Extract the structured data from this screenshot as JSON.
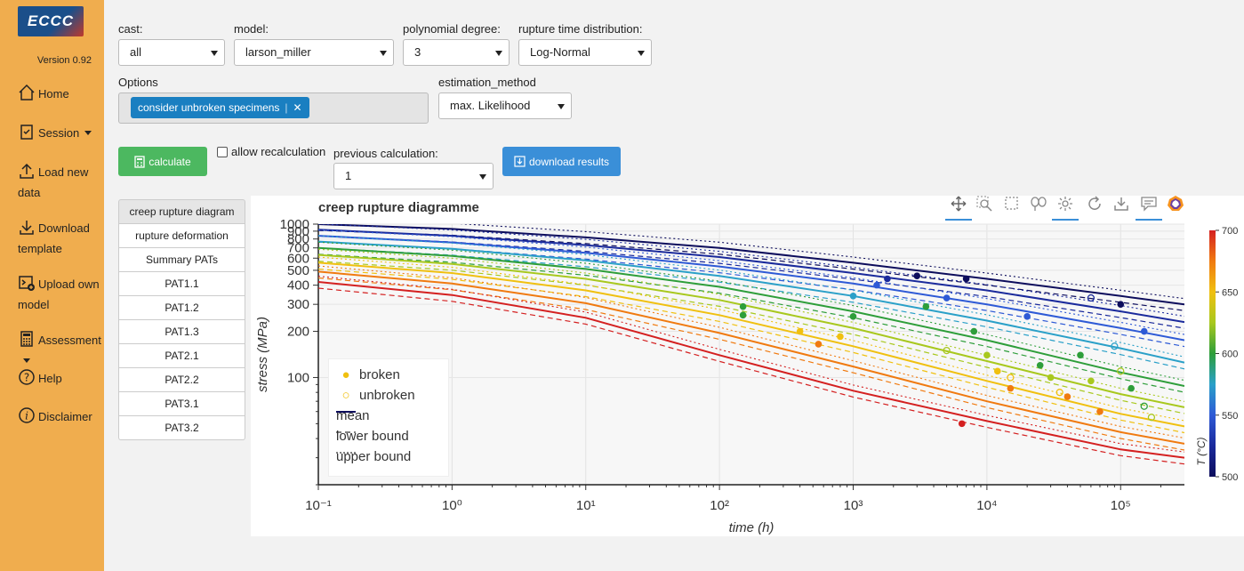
{
  "app": {
    "logo": "ECCC",
    "version": "Version 0.92"
  },
  "sidebar": {
    "items": [
      {
        "label": "Home",
        "icon": "home-icon"
      },
      {
        "label": "Session",
        "icon": "clipboard-icon",
        "dropdown": true
      },
      {
        "label": "Load new data",
        "icon": "upload-icon"
      },
      {
        "label": "Download template",
        "icon": "download-icon"
      },
      {
        "label": "Upload own model",
        "icon": "terminal-plus-icon"
      },
      {
        "label": "Assessment",
        "icon": "calculator-icon",
        "dropdown": true
      },
      {
        "label": "Help",
        "icon": "question-circle-icon"
      },
      {
        "label": "Disclaimer",
        "icon": "info-circle-icon"
      }
    ]
  },
  "controls": {
    "cast": {
      "label": "cast:",
      "value": "all"
    },
    "model": {
      "label": "model:",
      "value": "larson_miller"
    },
    "degree": {
      "label": "polynomial degree:",
      "value": "3"
    },
    "distribution": {
      "label": "rupture time distribution:",
      "value": "Log-Normal"
    },
    "options": {
      "label": "Options",
      "chip": "consider unbroken specimens"
    },
    "estimation": {
      "label": "estimation_method",
      "value": "max. Likelihood"
    },
    "calculate": "calculate",
    "recalc": "allow recalculation",
    "previous": {
      "label": "previous calculation:",
      "value": "1"
    },
    "download": "download results"
  },
  "tabs": [
    "creep rupture diagram",
    "rupture deformation",
    "Summary PATs",
    "PAT1.1",
    "PAT1.2",
    "PAT1.3",
    "PAT2.1",
    "PAT2.2",
    "PAT3.1",
    "PAT3.2"
  ],
  "chart_data": {
    "type": "scatter",
    "title": "creep rupture diagramme",
    "xlabel": "time (h)",
    "ylabel": "stress (MPa)",
    "xscale": "log",
    "yscale": "log",
    "xlim": [
      0.1,
      300000
    ],
    "ylim": [
      20,
      1000
    ],
    "xticks": [
      "10⁻¹",
      "10⁰",
      "10¹",
      "10²",
      "10³",
      "10⁴",
      "10⁵"
    ],
    "yticks": [
      "1000",
      "900",
      "800",
      "700",
      "600",
      "500",
      "400",
      "300",
      "200",
      "100"
    ],
    "legend": [
      "broken",
      "unbroken",
      "mean",
      "lower bound",
      "upper bound"
    ],
    "legend_position": "bottom-left",
    "colorbar": {
      "label": "T (°C)",
      "min": 500,
      "max": 700,
      "ticks": [
        "700",
        "650",
        "600",
        "550",
        "500"
      ]
    },
    "series": [
      {
        "T": 500,
        "color": "#0d0d5c",
        "mean": [
          [
            0.1,
            1000
          ],
          [
            1,
            930
          ],
          [
            10,
            820
          ],
          [
            100,
            700
          ],
          [
            1000,
            560
          ],
          [
            10000,
            440
          ],
          [
            100000,
            340
          ],
          [
            300000,
            300
          ]
        ]
      },
      {
        "T": 525,
        "color": "#1a2a9c",
        "mean": [
          [
            0.1,
            920
          ],
          [
            1,
            840
          ],
          [
            10,
            730
          ],
          [
            100,
            610
          ],
          [
            1000,
            480
          ],
          [
            10000,
            370
          ],
          [
            100000,
            270
          ],
          [
            300000,
            230
          ]
        ]
      },
      {
        "T": 550,
        "color": "#2e5ad6",
        "mean": [
          [
            0.1,
            840
          ],
          [
            1,
            760
          ],
          [
            10,
            650
          ],
          [
            100,
            530
          ],
          [
            1000,
            410
          ],
          [
            10000,
            300
          ],
          [
            100000,
            210
          ],
          [
            300000,
            175
          ]
        ]
      },
      {
        "T": 575,
        "color": "#2aa0c8",
        "mean": [
          [
            0.1,
            770
          ],
          [
            1,
            690
          ],
          [
            10,
            580
          ],
          [
            100,
            460
          ],
          [
            1000,
            340
          ],
          [
            10000,
            235
          ],
          [
            100000,
            155
          ],
          [
            300000,
            125
          ]
        ]
      },
      {
        "T": 600,
        "color": "#2e9e3a",
        "mean": [
          [
            0.1,
            700
          ],
          [
            1,
            620
          ],
          [
            10,
            510
          ],
          [
            100,
            390
          ],
          [
            1000,
            270
          ],
          [
            10000,
            175
          ],
          [
            100000,
            108
          ],
          [
            300000,
            88
          ]
        ]
      },
      {
        "T": 625,
        "color": "#a8c81e",
        "mean": [
          [
            0.1,
            630
          ],
          [
            1,
            550
          ],
          [
            10,
            440
          ],
          [
            100,
            320
          ],
          [
            1000,
            210
          ],
          [
            10000,
            128
          ],
          [
            100000,
            78
          ],
          [
            300000,
            64
          ]
        ]
      },
      {
        "T": 650,
        "color": "#f0c010",
        "mean": [
          [
            0.1,
            560
          ],
          [
            1,
            480
          ],
          [
            10,
            370
          ],
          [
            100,
            255
          ],
          [
            1000,
            160
          ],
          [
            10000,
            95
          ],
          [
            100000,
            58
          ],
          [
            300000,
            48
          ]
        ]
      },
      {
        "T": 675,
        "color": "#f07a10",
        "mean": [
          [
            0.1,
            490
          ],
          [
            1,
            410
          ],
          [
            10,
            305
          ],
          [
            100,
            195
          ],
          [
            1000,
            118
          ],
          [
            10000,
            70
          ],
          [
            100000,
            44
          ],
          [
            300000,
            37
          ]
        ]
      },
      {
        "T": 700,
        "color": "#d42020",
        "mean": [
          [
            0.1,
            420
          ],
          [
            1,
            345
          ],
          [
            10,
            245
          ],
          [
            100,
            140
          ],
          [
            1000,
            82
          ],
          [
            10000,
            52
          ],
          [
            100000,
            34
          ],
          [
            300000,
            30
          ]
        ]
      }
    ],
    "broken": [
      [
        150,
        290,
        "#2e9e3a"
      ],
      [
        150,
        255,
        "#2e9e3a"
      ],
      [
        400,
        200,
        "#f0c010"
      ],
      [
        550,
        165,
        "#f07a10"
      ],
      [
        800,
        185,
        "#f0c010"
      ],
      [
        1000,
        250,
        "#2e9e3a"
      ],
      [
        1000,
        340,
        "#2aa0c8"
      ],
      [
        1500,
        400,
        "#2e5ad6"
      ],
      [
        1800,
        440,
        "#1a2a9c"
      ],
      [
        3000,
        460,
        "#0d0d5c"
      ],
      [
        3500,
        290,
        "#2e9e3a"
      ],
      [
        5000,
        330,
        "#2e5ad6"
      ],
      [
        7000,
        440,
        "#0d0d5c"
      ],
      [
        8000,
        200,
        "#2e9e3a"
      ],
      [
        10000,
        140,
        "#a8c81e"
      ],
      [
        12000,
        110,
        "#f0c010"
      ],
      [
        15000,
        85,
        "#f07a10"
      ],
      [
        6500,
        50,
        "#d42020"
      ],
      [
        20000,
        250,
        "#2e5ad6"
      ],
      [
        25000,
        120,
        "#2e9e3a"
      ],
      [
        30000,
        100,
        "#a8c81e"
      ],
      [
        40000,
        75,
        "#f07a10"
      ],
      [
        50000,
        140,
        "#2e9e3a"
      ],
      [
        60000,
        95,
        "#a8c81e"
      ],
      [
        70000,
        60,
        "#f07a10"
      ],
      [
        100000,
        300,
        "#0d0d5c"
      ],
      [
        150000,
        200,
        "#2e5ad6"
      ],
      [
        120000,
        85,
        "#2e9e3a"
      ]
    ],
    "unbroken": [
      [
        5000,
        150,
        "#a8c81e"
      ],
      [
        15000,
        100,
        "#f0c010"
      ],
      [
        35000,
        80,
        "#f0c010"
      ],
      [
        60000,
        330,
        "#1a2a9c"
      ],
      [
        90000,
        160,
        "#2aa0c8"
      ],
      [
        100000,
        110,
        "#a8c81e"
      ],
      [
        150000,
        65,
        "#2e9e3a"
      ],
      [
        170000,
        55,
        "#a8c81e"
      ]
    ]
  }
}
